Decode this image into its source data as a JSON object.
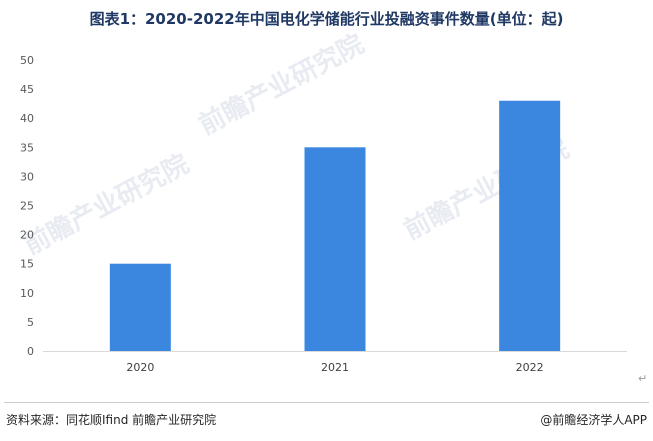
{
  "title": "图表1：2020-2022年中国电化学储能行业投融资事件数量(单位：起)",
  "footer": {
    "source": "资料来源：同花顺Ifind 前瞻产业研究院",
    "brand": "@前瞻经济学人APP"
  },
  "return_mark": "↵",
  "watermark": "前瞻产业研究院",
  "colors": {
    "bar": "#3b87e0",
    "axis": "#d9d9d9",
    "title": "#1f3864"
  },
  "chart_data": {
    "type": "bar",
    "title": "图表1：2020-2022年中国电化学储能行业投融资事件数量(单位：起)",
    "categories": [
      "2020",
      "2021",
      "2022"
    ],
    "values": [
      15,
      35,
      43
    ],
    "ylim": [
      0,
      50
    ],
    "yticks": [
      0,
      5,
      10,
      15,
      20,
      25,
      30,
      35,
      40,
      45,
      50
    ],
    "grid": false,
    "legend": "none"
  }
}
